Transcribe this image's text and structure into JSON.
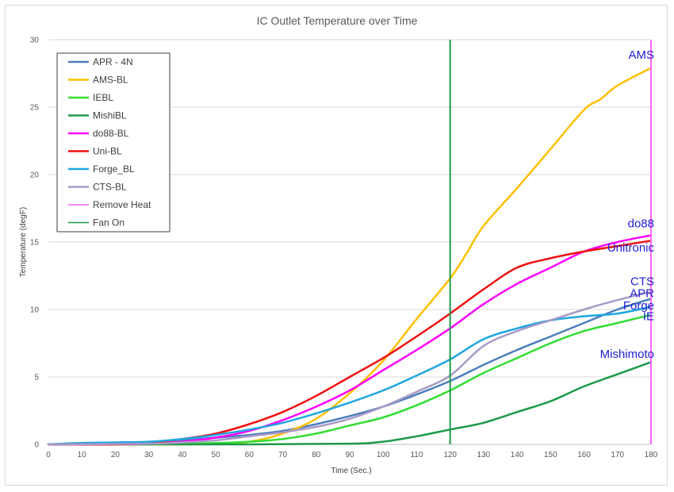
{
  "chart_data": {
    "type": "line",
    "title": "IC Outlet Temperature over Time",
    "xlabel": "Time (Sec.)",
    "ylabel": "Temperature (degF)",
    "xlim": [
      0,
      180
    ],
    "ylim": [
      0,
      30
    ],
    "xticks": [
      0,
      10,
      20,
      30,
      40,
      50,
      60,
      70,
      80,
      90,
      100,
      110,
      120,
      130,
      140,
      150,
      160,
      170,
      180
    ],
    "yticks": [
      0,
      5,
      10,
      15,
      20,
      25,
      30
    ],
    "grid": "horizontal",
    "legend_position": "top-left",
    "series": [
      {
        "name": "APR - 4N",
        "color": "#4a7ebb",
        "points": [
          [
            0,
            0
          ],
          [
            10,
            0.1
          ],
          [
            20,
            0.1
          ],
          [
            30,
            0.15
          ],
          [
            40,
            0.3
          ],
          [
            50,
            0.5
          ],
          [
            60,
            0.7
          ],
          [
            70,
            1.0
          ],
          [
            80,
            1.5
          ],
          [
            90,
            2.1
          ],
          [
            100,
            2.8
          ],
          [
            110,
            3.7
          ],
          [
            120,
            4.7
          ],
          [
            130,
            5.9
          ],
          [
            140,
            7.0
          ],
          [
            150,
            8.0
          ],
          [
            160,
            9.0
          ],
          [
            170,
            10.0
          ],
          [
            180,
            10.8
          ]
        ]
      },
      {
        "name": "AMS-BL",
        "color": "#ffc000",
        "points": [
          [
            0,
            0
          ],
          [
            10,
            0
          ],
          [
            20,
            0
          ],
          [
            30,
            0
          ],
          [
            40,
            0
          ],
          [
            50,
            0.05
          ],
          [
            60,
            0.2
          ],
          [
            70,
            0.8
          ],
          [
            80,
            1.9
          ],
          [
            90,
            3.8
          ],
          [
            100,
            6.2
          ],
          [
            110,
            9.3
          ],
          [
            120,
            12.3
          ],
          [
            125,
            14.2
          ],
          [
            130,
            16.2
          ],
          [
            140,
            19.0
          ],
          [
            150,
            21.9
          ],
          [
            160,
            24.8
          ],
          [
            165,
            25.6
          ],
          [
            170,
            26.6
          ],
          [
            180,
            27.9
          ]
        ]
      },
      {
        "name": "IEBL",
        "color": "#33dd33",
        "points": [
          [
            0,
            0
          ],
          [
            30,
            0
          ],
          [
            40,
            0.05
          ],
          [
            50,
            0.1
          ],
          [
            60,
            0.2
          ],
          [
            70,
            0.4
          ],
          [
            80,
            0.8
          ],
          [
            90,
            1.4
          ],
          [
            100,
            2.0
          ],
          [
            110,
            2.9
          ],
          [
            120,
            4.0
          ],
          [
            130,
            5.3
          ],
          [
            140,
            6.4
          ],
          [
            150,
            7.5
          ],
          [
            160,
            8.4
          ],
          [
            170,
            9.0
          ],
          [
            180,
            9.6
          ]
        ]
      },
      {
        "name": "MishiBL",
        "color": "#1e9a4a",
        "points": [
          [
            0,
            0
          ],
          [
            60,
            0
          ],
          [
            90,
            0.05
          ],
          [
            100,
            0.2
          ],
          [
            110,
            0.6
          ],
          [
            120,
            1.1
          ],
          [
            130,
            1.6
          ],
          [
            140,
            2.4
          ],
          [
            150,
            3.2
          ],
          [
            160,
            4.3
          ],
          [
            170,
            5.2
          ],
          [
            180,
            6.1
          ]
        ]
      },
      {
        "name": "do88-BL",
        "color": "#ff00ff",
        "points": [
          [
            0,
            0
          ],
          [
            10,
            0
          ],
          [
            20,
            0
          ],
          [
            30,
            0.05
          ],
          [
            40,
            0.2
          ],
          [
            50,
            0.5
          ],
          [
            60,
            1.0
          ],
          [
            70,
            1.8
          ],
          [
            80,
            2.8
          ],
          [
            90,
            4.0
          ],
          [
            100,
            5.5
          ],
          [
            110,
            7.0
          ],
          [
            120,
            8.6
          ],
          [
            130,
            10.4
          ],
          [
            140,
            11.9
          ],
          [
            150,
            13.1
          ],
          [
            160,
            14.3
          ],
          [
            170,
            15.0
          ],
          [
            180,
            15.5
          ]
        ]
      },
      {
        "name": "Uni-BL",
        "color": "#ee1111",
        "points": [
          [
            0,
            0
          ],
          [
            10,
            0
          ],
          [
            20,
            0
          ],
          [
            30,
            0.1
          ],
          [
            40,
            0.4
          ],
          [
            50,
            0.8
          ],
          [
            60,
            1.5
          ],
          [
            70,
            2.4
          ],
          [
            80,
            3.6
          ],
          [
            90,
            5.0
          ],
          [
            100,
            6.4
          ],
          [
            110,
            8.0
          ],
          [
            120,
            9.7
          ],
          [
            130,
            11.5
          ],
          [
            140,
            13.1
          ],
          [
            150,
            13.8
          ],
          [
            160,
            14.3
          ],
          [
            170,
            14.7
          ],
          [
            180,
            15.1
          ]
        ]
      },
      {
        "name": "Forge_BL",
        "color": "#1fa6e0",
        "points": [
          [
            0,
            0
          ],
          [
            10,
            0.1
          ],
          [
            20,
            0.15
          ],
          [
            30,
            0.2
          ],
          [
            40,
            0.4
          ],
          [
            50,
            0.7
          ],
          [
            60,
            1.1
          ],
          [
            70,
            1.6
          ],
          [
            80,
            2.3
          ],
          [
            90,
            3.1
          ],
          [
            100,
            4.0
          ],
          [
            110,
            5.1
          ],
          [
            120,
            6.3
          ],
          [
            130,
            7.8
          ],
          [
            140,
            8.6
          ],
          [
            150,
            9.2
          ],
          [
            160,
            9.5
          ],
          [
            170,
            9.7
          ],
          [
            180,
            10.2
          ]
        ]
      },
      {
        "name": "CTS-BL",
        "color": "#a99ac7",
        "points": [
          [
            0,
            0
          ],
          [
            30,
            0.05
          ],
          [
            40,
            0.15
          ],
          [
            50,
            0.3
          ],
          [
            60,
            0.6
          ],
          [
            70,
            0.9
          ],
          [
            80,
            1.3
          ],
          [
            90,
            1.9
          ],
          [
            100,
            2.8
          ],
          [
            110,
            3.9
          ],
          [
            120,
            5.1
          ],
          [
            130,
            7.3
          ],
          [
            140,
            8.4
          ],
          [
            150,
            9.2
          ],
          [
            160,
            10.0
          ],
          [
            170,
            10.7
          ],
          [
            180,
            11.3
          ]
        ]
      },
      {
        "name": "Remove Heat",
        "color": "#ff66ff",
        "vertical_x": 180
      },
      {
        "name": "Fan On",
        "color": "#1e9a4a",
        "vertical_x": 120
      }
    ],
    "annotations": [
      {
        "text": "AMS",
        "x": 180,
        "y": 28.6
      },
      {
        "text": "do88",
        "x": 180,
        "y": 16.1
      },
      {
        "text": "Unitronic",
        "x": 180,
        "y": 14.3
      },
      {
        "text": "CTS",
        "x": 180,
        "y": 11.8
      },
      {
        "text": "APR",
        "x": 180,
        "y": 10.9
      },
      {
        "text": "Forge",
        "x": 180,
        "y": 10.0
      },
      {
        "text": "IE",
        "x": 180,
        "y": 9.2
      },
      {
        "text": "Mishimoto",
        "x": 180,
        "y": 6.4
      }
    ]
  }
}
